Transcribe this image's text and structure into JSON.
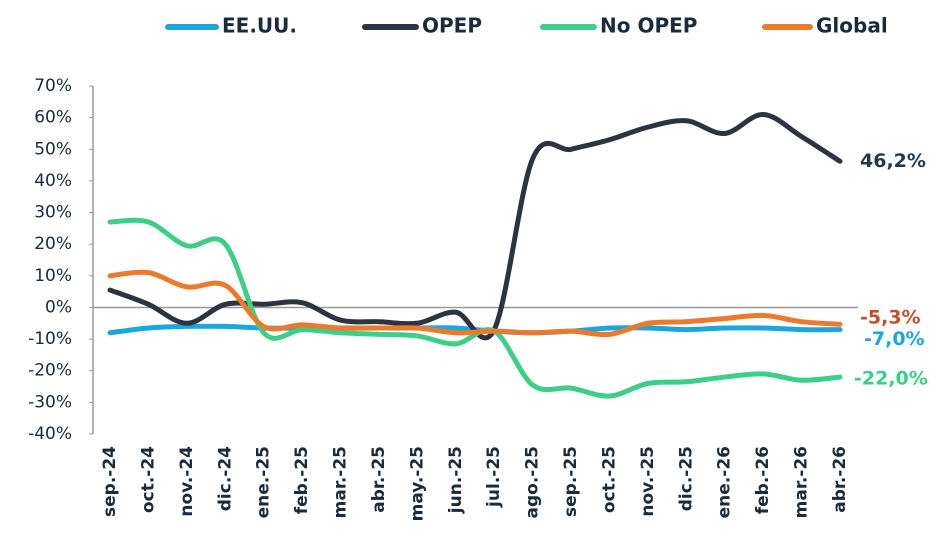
{
  "chart_data": {
    "type": "line",
    "categories": [
      "sep.-24",
      "oct.-24",
      "nov.-24",
      "dic.-24",
      "ene.-25",
      "feb.-25",
      "mar.-25",
      "abr.-25",
      "may.-25",
      "jun.-25",
      "jul.-25",
      "ago.-25",
      "sep.-25",
      "oct.-25",
      "nov.-25",
      "dic.-25",
      "ene.-26",
      "feb.-26",
      "mar.-26",
      "abr.-26"
    ],
    "series": [
      {
        "name": "EE.UU.",
        "color": "#1aa7e0",
        "values": [
          -8,
          -6.5,
          -6,
          -6,
          -6.5,
          -6.5,
          -6.5,
          -6.5,
          -6.5,
          -6.5,
          -7.5,
          -8,
          -7.5,
          -6.5,
          -6.5,
          -7,
          -6.5,
          -6.5,
          -7,
          -7.0
        ],
        "value_labels": [
          null,
          null,
          null,
          null,
          null,
          null,
          null,
          null,
          null,
          null,
          null,
          null,
          null,
          null,
          null,
          null,
          null,
          null,
          null,
          "-7,0%"
        ]
      },
      {
        "name": "OPEP",
        "color": "#2d3340",
        "values": [
          5.5,
          1,
          -5,
          1,
          1,
          1.5,
          -4,
          -4.5,
          -5,
          -1.5,
          -7,
          47,
          50,
          53,
          57,
          59,
          55,
          61,
          54,
          46.2
        ],
        "value_labels": [
          null,
          null,
          null,
          null,
          null,
          null,
          null,
          null,
          null,
          null,
          null,
          null,
          null,
          null,
          null,
          null,
          null,
          null,
          null,
          "46,2%"
        ]
      },
      {
        "name": "No OPEP",
        "color": "#3ccf88",
        "values": [
          27,
          27,
          19.5,
          20,
          -8,
          -7,
          -8,
          -8.5,
          -9,
          -11.5,
          -7.5,
          -24.5,
          -25.5,
          -28,
          -24,
          -23.5,
          -22,
          -21,
          -23,
          -22.0
        ],
        "value_labels": [
          null,
          null,
          null,
          null,
          null,
          null,
          null,
          null,
          null,
          null,
          null,
          null,
          null,
          null,
          null,
          null,
          null,
          null,
          null,
          "-22,0%"
        ]
      },
      {
        "name": "Global",
        "color": "#ec7a2c",
        "values": [
          10,
          11,
          6.5,
          7,
          -6,
          -5.5,
          -6.5,
          -6.5,
          -6.5,
          -8,
          -7.5,
          -8,
          -7.5,
          -8.5,
          -5,
          -4.5,
          -3.5,
          -2.5,
          -4.5,
          -5.3
        ],
        "value_labels": [
          null,
          null,
          null,
          null,
          null,
          null,
          null,
          null,
          null,
          null,
          null,
          null,
          null,
          null,
          null,
          null,
          null,
          null,
          null,
          "-5,3%"
        ]
      }
    ],
    "ylim": [
      -40,
      70
    ],
    "yticks": [
      {
        "value": -40,
        "label": "-40%"
      },
      {
        "value": -30,
        "label": "-30%"
      },
      {
        "value": -20,
        "label": "-20%"
      },
      {
        "value": -10,
        "label": "-10%"
      },
      {
        "value": 0,
        "label": "0%"
      },
      {
        "value": 10,
        "label": "10%"
      },
      {
        "value": 20,
        "label": "20%"
      },
      {
        "value": 30,
        "label": "30%"
      },
      {
        "value": 40,
        "label": "40%"
      },
      {
        "value": 50,
        "label": "50%"
      },
      {
        "value": 60,
        "label": "60%"
      },
      {
        "value": 70,
        "label": "70%"
      }
    ],
    "legend": "top"
  }
}
